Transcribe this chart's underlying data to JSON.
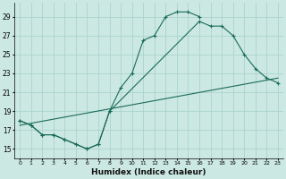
{
  "xlabel": "Humidex (Indice chaleur)",
  "background_color": "#cce8e2",
  "grid_color": "#aad4cc",
  "line_color": "#1a6b5a",
  "xlim": [
    -0.5,
    23.5
  ],
  "ylim": [
    14.0,
    30.5
  ],
  "xticks": [
    0,
    1,
    2,
    3,
    4,
    5,
    6,
    7,
    8,
    9,
    10,
    11,
    12,
    13,
    14,
    15,
    16,
    17,
    18,
    19,
    20,
    21,
    22,
    23
  ],
  "yticks": [
    15,
    17,
    19,
    21,
    23,
    25,
    27,
    29
  ],
  "curve1_x": [
    0,
    1,
    2,
    3,
    4,
    5,
    6,
    7,
    8,
    9,
    10,
    11,
    12,
    13,
    14,
    15,
    16
  ],
  "curve1_y": [
    18.0,
    17.5,
    16.5,
    16.5,
    16.0,
    15.5,
    15.0,
    15.5,
    19.0,
    21.5,
    23.0,
    26.5,
    27.0,
    29.0,
    29.5,
    29.5,
    29.0
  ],
  "curve2_x": [
    0,
    1,
    2,
    3,
    4,
    5,
    6,
    7,
    8,
    16,
    17,
    18,
    19,
    20,
    21,
    22,
    23
  ],
  "curve2_y": [
    18.0,
    17.5,
    16.5,
    16.5,
    16.0,
    15.5,
    15.0,
    15.5,
    19.0,
    28.5,
    28.0,
    28.0,
    27.0,
    25.0,
    23.5,
    22.5,
    22.0
  ],
  "line3_x": [
    0,
    23
  ],
  "line3_y": [
    17.5,
    22.5
  ]
}
